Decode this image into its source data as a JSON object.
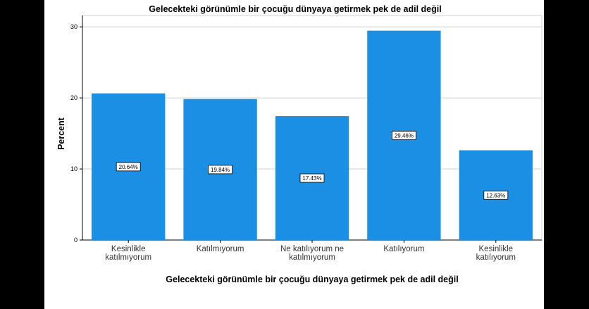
{
  "chart_data": {
    "type": "bar",
    "title": "Gelecekteki görünümle bir çocuğu dünyaya getirmek pek de adil değil",
    "xlabel": "Gelecekteki görünümle bir çocuğu dünyaya getirmek pek de adil değil",
    "ylabel": "Percent",
    "categories": [
      [
        "Kesinlikle",
        "katılmıyorum"
      ],
      [
        "Katılmıyorum"
      ],
      [
        "Ne katılıyorum ne",
        "katılmıyorum"
      ],
      [
        "Katılıyorum"
      ],
      [
        "Kesinlikle",
        "katılıyorum"
      ]
    ],
    "values": [
      20.64,
      19.84,
      17.43,
      29.46,
      12.63
    ],
    "data_labels": [
      "20.64%",
      "19.84%",
      "17.43%",
      "29.46%",
      "12.63%"
    ],
    "yticks": [
      0,
      10,
      20,
      30
    ],
    "ylim": [
      0,
      31.6
    ],
    "grid": true,
    "bar_color": "#1a8fe3"
  }
}
